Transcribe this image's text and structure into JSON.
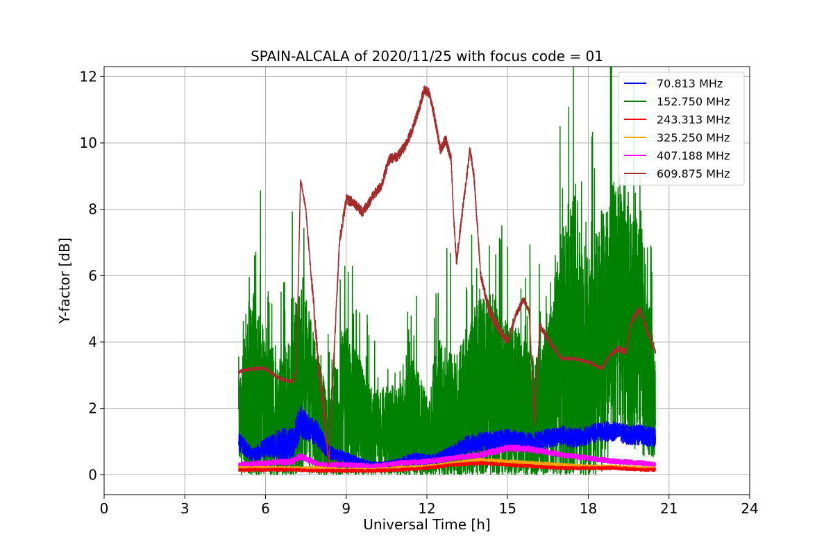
{
  "chart_data": {
    "type": "line",
    "title": "SPAIN-ALCALA of 2020/11/25 with focus code = 01",
    "xlabel": "Universal Time [h]",
    "ylabel": "Y-factor [dB]",
    "xlim": [
      0,
      24
    ],
    "ylim": [
      -0.6,
      12.3
    ],
    "xticks": [
      0,
      3,
      6,
      9,
      12,
      15,
      18,
      21,
      24
    ],
    "yticks": [
      0,
      2,
      4,
      6,
      8,
      10,
      12
    ],
    "grid": true,
    "legend_position": "top-right",
    "series": [
      {
        "name": " 70.813 MHz",
        "color": "#0000ff",
        "x": [
          5.0,
          5.5,
          6.0,
          6.5,
          7.0,
          7.3,
          7.6,
          8.0,
          8.3,
          8.6,
          9.0,
          9.5,
          10.0,
          10.5,
          11.0,
          11.5,
          12.0,
          12.5,
          13.0,
          13.5,
          14.0,
          14.5,
          15.0,
          15.5,
          16.0,
          16.5,
          17.0,
          17.5,
          18.0,
          18.5,
          19.0,
          19.5,
          20.0,
          20.5
        ],
        "values": [
          1.0,
          0.6,
          0.8,
          0.9,
          0.9,
          1.6,
          1.4,
          1.2,
          0.7,
          0.6,
          0.5,
          0.4,
          0.3,
          0.3,
          0.4,
          0.5,
          0.4,
          0.5,
          0.7,
          0.9,
          1.0,
          1.0,
          1.1,
          1.0,
          1.0,
          1.1,
          1.2,
          1.1,
          1.2,
          1.3,
          1.3,
          1.2,
          1.2,
          1.1
        ],
        "amp": [
          0.3,
          0.2,
          0.3,
          0.5,
          0.5,
          0.5,
          0.4,
          0.4,
          0.2,
          0.2,
          0.2,
          0.1,
          0.1,
          0.1,
          0.1,
          0.2,
          0.2,
          0.2,
          0.2,
          0.3,
          0.3,
          0.3,
          0.3,
          0.3,
          0.3,
          0.3,
          0.3,
          0.3,
          0.3,
          0.3,
          0.3,
          0.3,
          0.3,
          0.3
        ]
      },
      {
        "name": "152.750 MHz",
        "color": "#008000",
        "x": [
          5.0,
          5.5,
          6.0,
          6.5,
          7.0,
          7.3,
          7.6,
          8.0,
          8.3,
          8.6,
          9.0,
          9.5,
          10.0,
          10.5,
          11.0,
          11.5,
          12.0,
          12.5,
          13.0,
          13.5,
          14.0,
          14.5,
          15.0,
          15.5,
          16.0,
          16.5,
          17.0,
          17.5,
          18.0,
          18.5,
          19.0,
          19.5,
          20.0,
          20.5
        ],
        "values": [
          1.5,
          2.5,
          2.0,
          1.5,
          2.0,
          3.0,
          2.5,
          1.5,
          1.0,
          1.5,
          2.0,
          1.5,
          1.0,
          1.2,
          1.2,
          1.5,
          1.0,
          1.8,
          1.5,
          2.0,
          2.5,
          2.5,
          2.0,
          2.0,
          1.5,
          2.0,
          3.5,
          4.5,
          3.0,
          4.0,
          5.0,
          4.5,
          4.0,
          2.0
        ],
        "amp": [
          1.5,
          3.0,
          2.5,
          2.0,
          2.5,
          3.0,
          2.5,
          2.0,
          1.5,
          2.0,
          2.5,
          2.0,
          1.5,
          1.5,
          1.5,
          2.0,
          1.5,
          2.5,
          2.0,
          2.5,
          3.0,
          3.0,
          2.5,
          2.5,
          2.0,
          2.5,
          4.0,
          4.5,
          3.5,
          4.0,
          4.0,
          3.5,
          3.5,
          1.5
        ]
      },
      {
        "name": "243.313 MHz",
        "color": "#ff0000",
        "x": [
          5.0,
          6.0,
          7.0,
          8.0,
          9.0,
          10.0,
          11.0,
          12.0,
          13.0,
          14.0,
          15.0,
          16.0,
          17.0,
          18.0,
          19.0,
          20.0,
          20.5
        ],
        "values": [
          0.15,
          0.15,
          0.15,
          0.12,
          0.12,
          0.12,
          0.15,
          0.2,
          0.3,
          0.35,
          0.3,
          0.25,
          0.2,
          0.2,
          0.2,
          0.15,
          0.15
        ],
        "amp": [
          0.05,
          0.05,
          0.05,
          0.05,
          0.05,
          0.05,
          0.05,
          0.05,
          0.05,
          0.05,
          0.05,
          0.05,
          0.05,
          0.05,
          0.05,
          0.05,
          0.05
        ]
      },
      {
        "name": "325.250 MHz",
        "color": "#ffa500",
        "x": [
          5.0,
          6.0,
          7.0,
          8.0,
          9.0,
          10.0,
          11.0,
          12.0,
          13.0,
          14.0,
          15.0,
          16.0,
          17.0,
          18.0,
          19.0,
          20.0,
          20.5
        ],
        "values": [
          0.2,
          0.2,
          0.2,
          0.2,
          0.15,
          0.15,
          0.2,
          0.25,
          0.35,
          0.45,
          0.4,
          0.35,
          0.3,
          0.25,
          0.25,
          0.2,
          0.2
        ],
        "amp": [
          0.05,
          0.05,
          0.05,
          0.05,
          0.05,
          0.05,
          0.05,
          0.05,
          0.05,
          0.05,
          0.05,
          0.05,
          0.05,
          0.05,
          0.05,
          0.05,
          0.05
        ]
      },
      {
        "name": "407.188 MHz",
        "color": "#ff00ff",
        "x": [
          5.0,
          6.0,
          7.0,
          7.3,
          8.0,
          9.0,
          10.0,
          11.0,
          12.0,
          13.0,
          14.0,
          14.5,
          15.0,
          15.5,
          16.0,
          17.0,
          18.0,
          18.5,
          19.0,
          20.0,
          20.5
        ],
        "values": [
          0.3,
          0.35,
          0.4,
          0.55,
          0.3,
          0.3,
          0.25,
          0.35,
          0.4,
          0.5,
          0.6,
          0.7,
          0.8,
          0.8,
          0.75,
          0.6,
          0.5,
          0.45,
          0.4,
          0.35,
          0.3
        ],
        "amp": [
          0.08,
          0.08,
          0.1,
          0.1,
          0.08,
          0.08,
          0.08,
          0.08,
          0.08,
          0.08,
          0.1,
          0.1,
          0.1,
          0.1,
          0.1,
          0.08,
          0.08,
          0.08,
          0.08,
          0.08,
          0.08
        ]
      },
      {
        "name": "609.875 MHz",
        "color": "#a52a2a",
        "x": [
          5.0,
          5.5,
          6.0,
          6.5,
          7.0,
          7.15,
          7.3,
          7.5,
          7.7,
          8.0,
          8.2,
          8.35,
          8.6,
          8.75,
          9.0,
          9.3,
          9.6,
          10.0,
          10.3,
          10.6,
          10.9,
          11.2,
          11.5,
          11.7,
          11.9,
          12.1,
          12.3,
          12.5,
          12.7,
          12.9,
          13.0,
          13.1,
          13.3,
          13.6,
          13.75,
          14.0,
          14.3,
          14.6,
          15.0,
          15.3,
          15.6,
          15.8,
          16.0,
          16.2,
          16.5,
          17.0,
          17.5,
          18.0,
          18.5,
          18.8,
          19.1,
          19.4,
          19.6,
          19.9,
          20.2,
          20.5
        ],
        "values": [
          3.1,
          3.2,
          3.2,
          2.9,
          2.8,
          3.1,
          8.9,
          8.0,
          6.0,
          3.0,
          1.8,
          0.3,
          4.5,
          7.0,
          8.3,
          8.2,
          7.9,
          8.4,
          8.7,
          9.5,
          9.6,
          9.9,
          10.5,
          11.0,
          11.6,
          11.5,
          10.7,
          9.8,
          10.1,
          9.5,
          7.7,
          6.4,
          7.8,
          9.8,
          9.0,
          6.0,
          5.0,
          4.5,
          4.0,
          4.8,
          5.3,
          4.9,
          1.5,
          4.5,
          4.1,
          3.5,
          3.5,
          3.4,
          3.2,
          3.6,
          3.8,
          3.7,
          4.6,
          5.0,
          4.3,
          3.7
        ],
        "amp": [
          0.05,
          0.05,
          0.05,
          0.05,
          0.05,
          0.05,
          0.05,
          0.1,
          0.2,
          0.3,
          0.3,
          0.1,
          0.2,
          0.2,
          0.15,
          0.15,
          0.15,
          0.15,
          0.15,
          0.15,
          0.15,
          0.15,
          0.15,
          0.15,
          0.15,
          0.15,
          0.15,
          0.15,
          0.15,
          0.15,
          0.15,
          0.15,
          0.15,
          0.15,
          0.15,
          0.15,
          0.15,
          0.15,
          0.1,
          0.1,
          0.1,
          0.1,
          0.2,
          0.1,
          0.1,
          0.05,
          0.05,
          0.05,
          0.05,
          0.05,
          0.1,
          0.1,
          0.1,
          0.1,
          0.1,
          0.05
        ]
      }
    ]
  }
}
